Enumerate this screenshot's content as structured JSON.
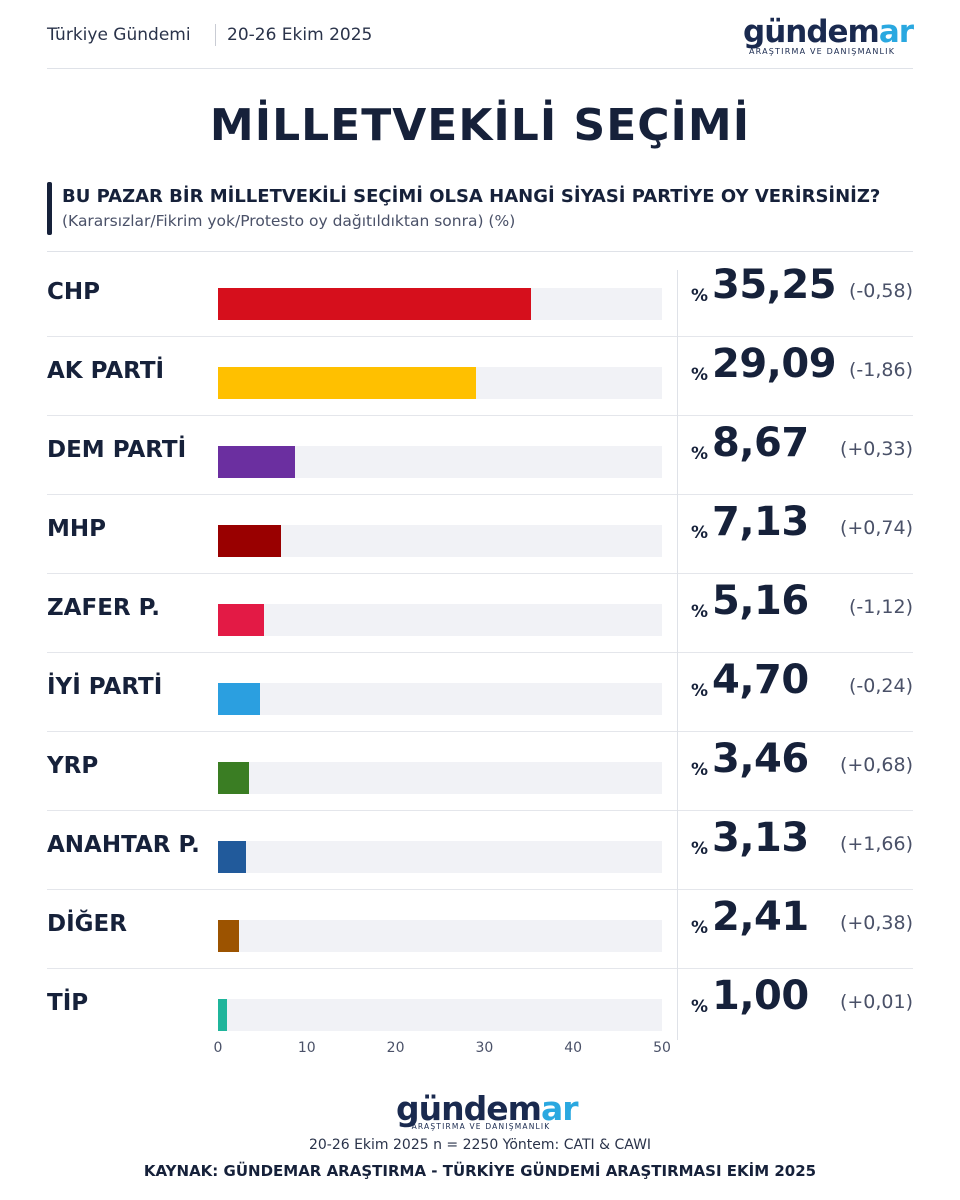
{
  "header": {
    "section": "Türkiye Gündemi",
    "date_range": "20-26 Ekim 2025",
    "logo_main": "gündem",
    "logo_accent": "ar",
    "logo_sub": "ARAŞTIRMA VE DANIŞMANLIK"
  },
  "title": "MİLLETVEKİLİ SEÇİMİ",
  "question": "BU PAZAR BİR MİLLETVEKİLİ SEÇİMİ OLSA HANGİ SİYASİ PARTİYE OY VERİRSİNİZ?",
  "subquestion": "(Kararsızlar/Fikrim yok/Protesto oy dağıtıldıktan sonra) (%)",
  "percent_sign": "%",
  "chart_data": {
    "type": "bar",
    "orientation": "horizontal",
    "title": "MİLLETVEKİLİ SEÇİMİ",
    "categories": [
      "CHP",
      "AK PARTİ",
      "DEM PARTİ",
      "MHP",
      "ZAFER P.",
      "İYİ PARTİ",
      "YRP",
      "ANAHTAR P.",
      "DİĞER",
      "TİP"
    ],
    "values": [
      35.25,
      29.09,
      8.67,
      7.13,
      5.16,
      4.7,
      3.46,
      3.13,
      2.41,
      1.0
    ],
    "value_labels": [
      "35,25",
      "29,09",
      "8,67",
      "7,13",
      "5,16",
      "4,70",
      "3,46",
      "3,13",
      "2,41",
      "1,00"
    ],
    "changes": [
      "(-0,58)",
      "(-1,86)",
      "(+0,33)",
      "(+0,74)",
      "(-1,12)",
      "(-0,24)",
      "(+0,68)",
      "(+1,66)",
      "(+0,38)",
      "(+0,01)"
    ],
    "colors": [
      "#d60f1c",
      "#ffc000",
      "#6b2fa0",
      "#990000",
      "#e31a45",
      "#2b9fe0",
      "#3a7d23",
      "#215a9b",
      "#9c5300",
      "#1fb59b"
    ],
    "xlim": [
      0,
      50
    ],
    "xticks": [
      "0",
      "10",
      "20",
      "30",
      "40",
      "50"
    ],
    "grid": false,
    "legend": "none"
  },
  "footer": {
    "logo_main": "gündem",
    "logo_accent": "ar",
    "logo_sub": "ARAŞTIRMA VE DANIŞMANLIK",
    "meta": "20-26 Ekim 2025 n = 2250 Yöntem: CATI & CAWI",
    "source": "KAYNAK: GÜNDEMAR ARAŞTIRMA - TÜRKİYE GÜNDEMİ ARAŞTIRMASI EKİM 2025"
  }
}
